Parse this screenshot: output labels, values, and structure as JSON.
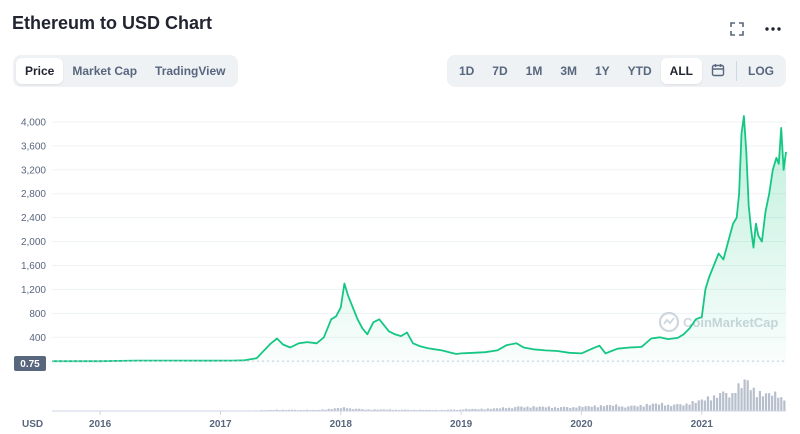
{
  "header": {
    "title": "Ethereum to USD Chart"
  },
  "icons": {
    "fullscreen": "fullscreen-icon",
    "more": "more-icon",
    "calendar": "calendar-icon"
  },
  "tabs_left": [
    {
      "label": "Price",
      "active": true
    },
    {
      "label": "Market Cap",
      "active": false
    },
    {
      "label": "TradingView",
      "active": false
    }
  ],
  "ranges": [
    {
      "label": "1D",
      "active": false
    },
    {
      "label": "7D",
      "active": false
    },
    {
      "label": "1M",
      "active": false
    },
    {
      "label": "3M",
      "active": false
    },
    {
      "label": "1Y",
      "active": false
    },
    {
      "label": "YTD",
      "active": false
    },
    {
      "label": "ALL",
      "active": true
    }
  ],
  "log_label": "LOG",
  "watermark": "CoinMarketCap",
  "colors": {
    "line": "#16c784",
    "volume": "#b8bfcc",
    "grid": "#eff2f5",
    "text": "#58667e"
  },
  "chart_data": {
    "type": "area",
    "currency_label": "USD",
    "start_price_label": "0.75",
    "y_ticks": [
      "400",
      "800",
      "1,200",
      "1,600",
      "2,000",
      "2,400",
      "2,800",
      "3,200",
      "3,600",
      "4,000"
    ],
    "y_tick_values": [
      400,
      800,
      1200,
      1600,
      2000,
      2400,
      2800,
      3200,
      3600,
      4000
    ],
    "x_tick_labels": [
      "2016",
      "2017",
      "2018",
      "2019",
      "2020",
      "2021"
    ],
    "x_tick_years": [
      2016,
      2017,
      2018,
      2019,
      2020,
      2021
    ],
    "xlim": [
      2015.6,
      2021.7
    ],
    "ylim": [
      -80,
      4300
    ],
    "grid": true,
    "series": [
      {
        "x": [
          2015.6,
          2016.0,
          2016.3,
          2016.6,
          2016.9,
          2017.1,
          2017.2,
          2017.3,
          2017.42,
          2017.47,
          2017.52,
          2017.58,
          2017.65,
          2017.72,
          2017.8,
          2017.86,
          2017.92,
          2017.96,
          2018.0,
          2018.03,
          2018.06,
          2018.1,
          2018.14,
          2018.18,
          2018.22,
          2018.27,
          2018.32,
          2018.36,
          2018.4,
          2018.45,
          2018.5,
          2018.55,
          2018.6,
          2018.66,
          2018.72,
          2018.78,
          2018.84,
          2018.9,
          2018.96,
          2019.0,
          2019.1,
          2019.2,
          2019.3,
          2019.38,
          2019.46,
          2019.52,
          2019.6,
          2019.7,
          2019.8,
          2019.9,
          2020.0,
          2020.1,
          2020.15,
          2020.2,
          2020.25,
          2020.3,
          2020.4,
          2020.5,
          2020.58,
          2020.65,
          2020.72,
          2020.8,
          2020.85,
          2020.9,
          2020.95,
          2021.0,
          2021.03,
          2021.06,
          2021.1,
          2021.14,
          2021.18,
          2021.22,
          2021.26,
          2021.29,
          2021.31,
          2021.33,
          2021.35,
          2021.37,
          2021.39,
          2021.41,
          2021.43,
          2021.45,
          2021.47,
          2021.5,
          2021.53,
          2021.56,
          2021.59,
          2021.62,
          2021.64,
          2021.66,
          2021.68,
          2021.7
        ],
        "y": [
          1,
          1,
          10,
          11,
          8,
          10,
          15,
          50,
          300,
          380,
          280,
          230,
          300,
          320,
          300,
          400,
          700,
          750,
          900,
          1300,
          1100,
          900,
          700,
          550,
          450,
          650,
          700,
          600,
          500,
          450,
          420,
          480,
          300,
          250,
          220,
          200,
          180,
          150,
          120,
          130,
          140,
          150,
          180,
          270,
          300,
          230,
          200,
          180,
          170,
          140,
          130,
          220,
          260,
          130,
          170,
          210,
          230,
          240,
          380,
          400,
          370,
          390,
          450,
          550,
          700,
          740,
          1200,
          1400,
          1600,
          1800,
          1700,
          2000,
          2300,
          2400,
          2800,
          3800,
          4100,
          3500,
          2600,
          2200,
          1900,
          2300,
          2100,
          2000,
          2500,
          2800,
          3200,
          3400,
          3300,
          3900,
          3200,
          3500
        ]
      }
    ],
    "volume": {
      "x": [
        2015.6,
        2016.0,
        2016.5,
        2017.0,
        2017.3,
        2017.5,
        2017.8,
        2017.95,
        2018.05,
        2018.2,
        2018.5,
        2018.8,
        2019.0,
        2019.3,
        2019.5,
        2019.8,
        2020.0,
        2020.2,
        2020.4,
        2020.6,
        2020.8,
        2020.95,
        2021.05,
        2021.15,
        2021.25,
        2021.33,
        2021.37,
        2021.42,
        2021.5,
        2021.6,
        2021.7
      ],
      "y": [
        0,
        0,
        0,
        0.5,
        2,
        4,
        3,
        8,
        10,
        5,
        4,
        3,
        5,
        8,
        14,
        12,
        13,
        18,
        15,
        22,
        20,
        28,
        40,
        55,
        60,
        75,
        100,
        70,
        55,
        50,
        45
      ]
    }
  }
}
